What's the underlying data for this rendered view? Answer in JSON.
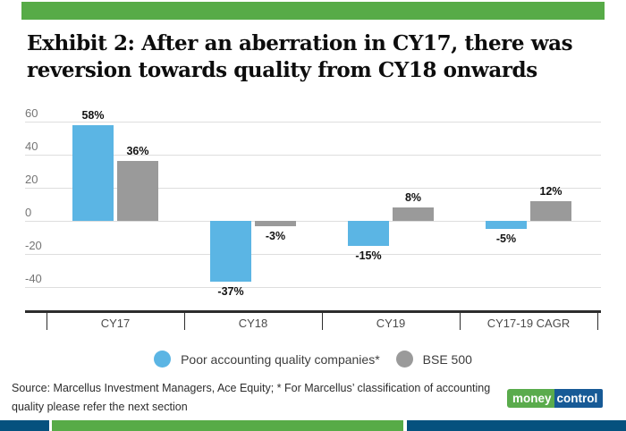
{
  "header": {
    "title_line1": "Exhibit 2: After an aberration in CY17, there was",
    "title_line2": "reversion towards quality from CY18 onwards"
  },
  "chart_data": {
    "type": "bar",
    "title": "Exhibit 2: After an aberration in CY17, there was reversion towards quality from CY18 onwards",
    "categories": [
      "CY17",
      "CY18",
      "CY19",
      "CY17-19 CAGR"
    ],
    "series": [
      {
        "name": "Poor accounting quality companies*",
        "color": "#5bb5e4",
        "values": [
          58,
          -37,
          -15,
          -5
        ]
      },
      {
        "name": "BSE 500",
        "color": "#9a9a9a",
        "values": [
          36,
          -3,
          8,
          12
        ]
      }
    ],
    "unit": "%",
    "yticks": [
      60,
      40,
      20,
      0,
      -20,
      -40
    ],
    "ylim": [
      -48,
      64
    ],
    "grid": true,
    "legend_position": "bottom",
    "value_labels": true,
    "xlabel": "",
    "ylabel": ""
  },
  "footer": {
    "source_line1": "Source: Marcellus Investment Managers, Ace Equity; * For Marcellus’ classification of accounting",
    "source_line2": "quality please refer the next section",
    "logo": {
      "part1": "money",
      "part2": "control"
    }
  },
  "colors": {
    "accent_green": "#57ab47",
    "accent_blue": "#05517e",
    "logo_green": "#5aab4c",
    "logo_blue": "#175a96",
    "gridline": "#dedede",
    "axis_line": "#2d2d2d",
    "tick_label": "#757575"
  }
}
